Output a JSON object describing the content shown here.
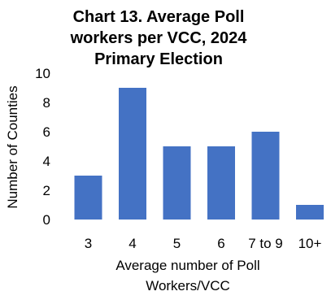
{
  "chart_data": {
    "type": "bar",
    "title": "Chart 13. Average Poll workers per VCC, 2024 Primary Election",
    "title_lines": [
      "Chart 13. Average  Poll",
      "workers per VCC, 2024",
      "Primary Election"
    ],
    "xlabel": "Average number of Poll Workers/VCC",
    "xlabel_lines": [
      "Average number of Poll",
      "Workers/VCC"
    ],
    "ylabel": "Number of Counties",
    "categories": [
      "3",
      "4",
      "5",
      "6",
      "7 to 9",
      "10+"
    ],
    "values": [
      3,
      9,
      5,
      5,
      6,
      1
    ],
    "ylim": [
      0,
      10
    ],
    "yticks": [
      0,
      2,
      4,
      6,
      8,
      10
    ],
    "grid": false,
    "legend": "none",
    "bar_color": "#4472C4"
  }
}
